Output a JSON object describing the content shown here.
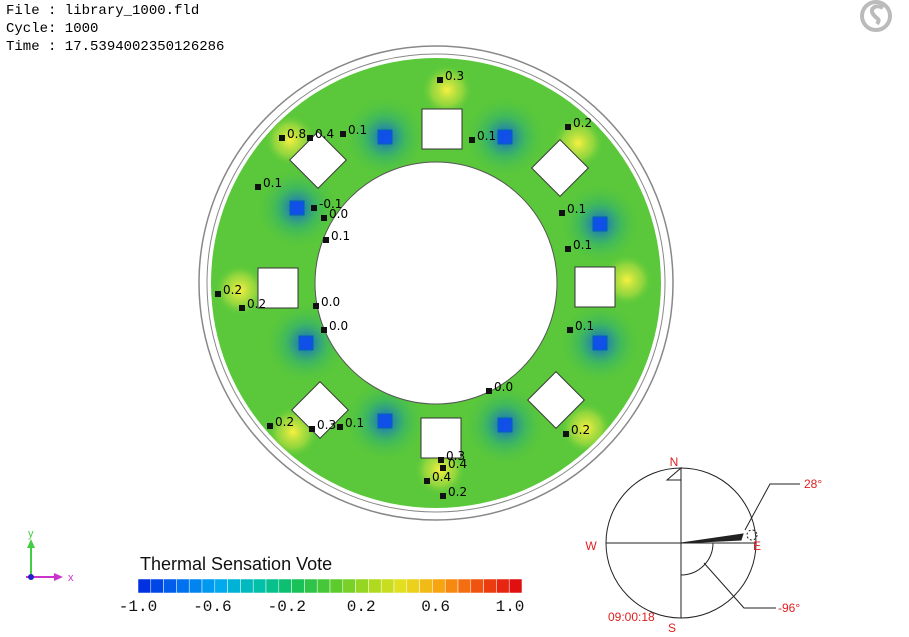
{
  "header": {
    "file": "File : library_1000.fld",
    "cycle": "Cycle: 1000",
    "time": "Time : 17.5394002350126286"
  },
  "probes": [
    "0.3",
    "0.8",
    "0.4",
    "0.1",
    "0.1",
    "0.2",
    "0.1",
    "-0.1",
    "0.0",
    "0.1",
    "0.1",
    "0.1",
    "0.2",
    "0.2",
    "0.0",
    "0.0",
    "0.1",
    "0.0",
    "0.2",
    "0.3",
    "0.1",
    "0.2",
    "0.3",
    "0.4",
    "0.4",
    "0.2"
  ],
  "colorbar": {
    "title": "Thermal Sensation Vote",
    "ticks": [
      "-1.0",
      "-0.6",
      "-0.2",
      "0.2",
      "0.6",
      "1.0"
    ]
  },
  "compass": {
    "north": "N",
    "west": "W",
    "east": "E",
    "south": "S",
    "altitude": "28°",
    "azimuth": "-96°",
    "clock": "09:00:18"
  },
  "axes": {
    "y": "y",
    "x": "x"
  }
}
